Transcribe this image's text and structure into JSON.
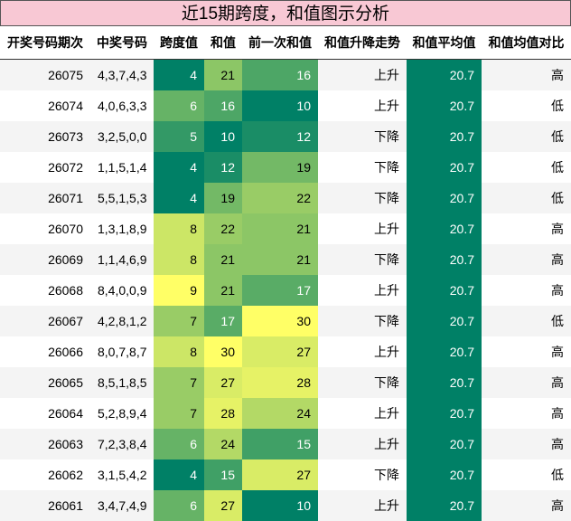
{
  "table": {
    "title": "近15期跨度，和值图示分析",
    "columns": [
      "开奖号码期次",
      "中奖号码",
      "跨度值",
      "和值",
      "前一次和值",
      "和值升降走势",
      "和值平均值",
      "和值均值对比"
    ],
    "rows": [
      [
        26075,
        "4,3,7,4,3",
        4,
        21,
        16,
        "上升",
        20.7,
        "高"
      ],
      [
        26074,
        "4,0,6,3,3",
        6,
        16,
        10,
        "上升",
        20.7,
        "低"
      ],
      [
        26073,
        "3,2,5,0,0",
        5,
        10,
        12,
        "下降",
        20.7,
        "低"
      ],
      [
        26072,
        "1,1,5,1,4",
        4,
        12,
        19,
        "下降",
        20.7,
        "低"
      ],
      [
        26071,
        "5,5,1,5,3",
        4,
        19,
        22,
        "下降",
        20.7,
        "低"
      ],
      [
        26070,
        "1,3,1,8,9",
        8,
        22,
        21,
        "上升",
        20.7,
        "高"
      ],
      [
        26069,
        "1,1,4,6,9",
        8,
        21,
        21,
        "下降",
        20.7,
        "高"
      ],
      [
        26068,
        "8,4,0,0,9",
        9,
        21,
        17,
        "上升",
        20.7,
        "高"
      ],
      [
        26067,
        "4,2,8,1,2",
        7,
        17,
        30,
        "下降",
        20.7,
        "低"
      ],
      [
        26066,
        "8,0,7,8,7",
        8,
        30,
        27,
        "上升",
        20.7,
        "高"
      ],
      [
        26065,
        "8,5,1,8,5",
        7,
        27,
        28,
        "下降",
        20.7,
        "高"
      ],
      [
        26064,
        "5,2,8,9,4",
        7,
        28,
        24,
        "上升",
        20.7,
        "高"
      ],
      [
        26063,
        "7,2,3,8,4",
        6,
        24,
        15,
        "上升",
        20.7,
        "高"
      ],
      [
        26062,
        "3,1,5,4,2",
        4,
        15,
        27,
        "下降",
        20.7,
        "低"
      ],
      [
        26061,
        "3,4,7,4,9",
        6,
        27,
        10,
        "上升",
        20.7,
        "高"
      ]
    ]
  }
}
